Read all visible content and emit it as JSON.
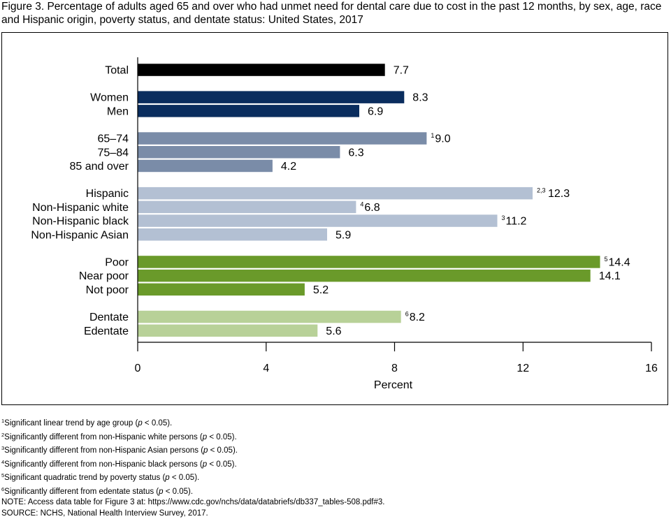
{
  "title": "Figure 3. Percentage of adults aged 65 and over who had unmet need for dental care due to cost in the past 12 months, by sex, age, race and Hispanic origin, poverty status, and dentate status: United States, 2017",
  "chart_data": {
    "type": "bar",
    "orientation": "horizontal",
    "xlabel": "Percent",
    "xlim": [
      0,
      16
    ],
    "xticks": [
      0,
      4,
      8,
      12,
      16
    ],
    "grid": false,
    "bars": [
      {
        "category": "Total",
        "value": 7.7,
        "label": "7.7",
        "sup": "",
        "color": "#000000",
        "group": 0
      },
      {
        "category": "Women",
        "value": 8.3,
        "label": "8.3",
        "sup": "",
        "color": "#0a2d5e",
        "group": 1
      },
      {
        "category": "Men",
        "value": 6.9,
        "label": "6.9",
        "sup": "",
        "color": "#0a2d5e",
        "group": 1
      },
      {
        "category": "65–74",
        "value": 9.0,
        "label": "9.0",
        "sup": "1",
        "color": "#7a8ca8",
        "group": 2
      },
      {
        "category": "75–84",
        "value": 6.3,
        "label": "6.3",
        "sup": "",
        "color": "#7a8ca8",
        "group": 2
      },
      {
        "category": "85 and over",
        "value": 4.2,
        "label": "4.2",
        "sup": "",
        "color": "#7a8ca8",
        "group": 2
      },
      {
        "category": "Hispanic",
        "value": 12.3,
        "label": "12.3",
        "sup": "2,3",
        "color": "#b3c0d3",
        "group": 3
      },
      {
        "category": "Non-Hispanic white",
        "value": 6.8,
        "label": "6.8",
        "sup": "4",
        "color": "#b3c0d3",
        "group": 3
      },
      {
        "category": "Non-Hispanic black",
        "value": 11.2,
        "label": "11.2",
        "sup": "3",
        "color": "#b3c0d3",
        "group": 3
      },
      {
        "category": "Non-Hispanic Asian",
        "value": 5.9,
        "label": "5.9",
        "sup": "",
        "color": "#b3c0d3",
        "group": 3
      },
      {
        "category": "Poor",
        "value": 14.4,
        "label": "14.4",
        "sup": "5",
        "color": "#6a9a2a",
        "group": 4
      },
      {
        "category": "Near poor",
        "value": 14.1,
        "label": "14.1",
        "sup": "",
        "color": "#6a9a2a",
        "group": 4
      },
      {
        "category": "Not poor",
        "value": 5.2,
        "label": "5.2",
        "sup": "",
        "color": "#6a9a2a",
        "group": 4
      },
      {
        "category": "Dentate",
        "value": 8.2,
        "label": "8.2",
        "sup": "6",
        "color": "#b8d198",
        "group": 5
      },
      {
        "category": "Edentate",
        "value": 5.6,
        "label": "5.6",
        "sup": "",
        "color": "#b8d198",
        "group": 5
      }
    ]
  },
  "footnotes": [
    {
      "sup": "1",
      "pre": "Significant linear trend by age group (",
      "p": "p",
      "post": " < 0.05)."
    },
    {
      "sup": "2",
      "pre": "Significantly different from non-Hispanic white persons (",
      "p": "p",
      "post": " < 0.05)."
    },
    {
      "sup": "3",
      "pre": "Significantly different from non-Hispanic Asian persons (",
      "p": "p",
      "post": " < 0.05)."
    },
    {
      "sup": "4",
      "pre": "Significantly different from non-Hispanic black persons (",
      "p": "p",
      "post": " < 0.05)."
    },
    {
      "sup": "5",
      "pre": "Significant quadratic trend by poverty status (",
      "p": "p",
      "post": " < 0.05)."
    },
    {
      "sup": "6",
      "pre": "Significantly different from edentate status (",
      "p": "p",
      "post": " < 0.05)."
    }
  ],
  "note": "NOTE: Access data table for Figure 3 at: https://www.cdc.gov/nchs/data/databriefs/db337_tables-508.pdf#3.",
  "source": "SOURCE: NCHS, National Health Interview Survey, 2017."
}
